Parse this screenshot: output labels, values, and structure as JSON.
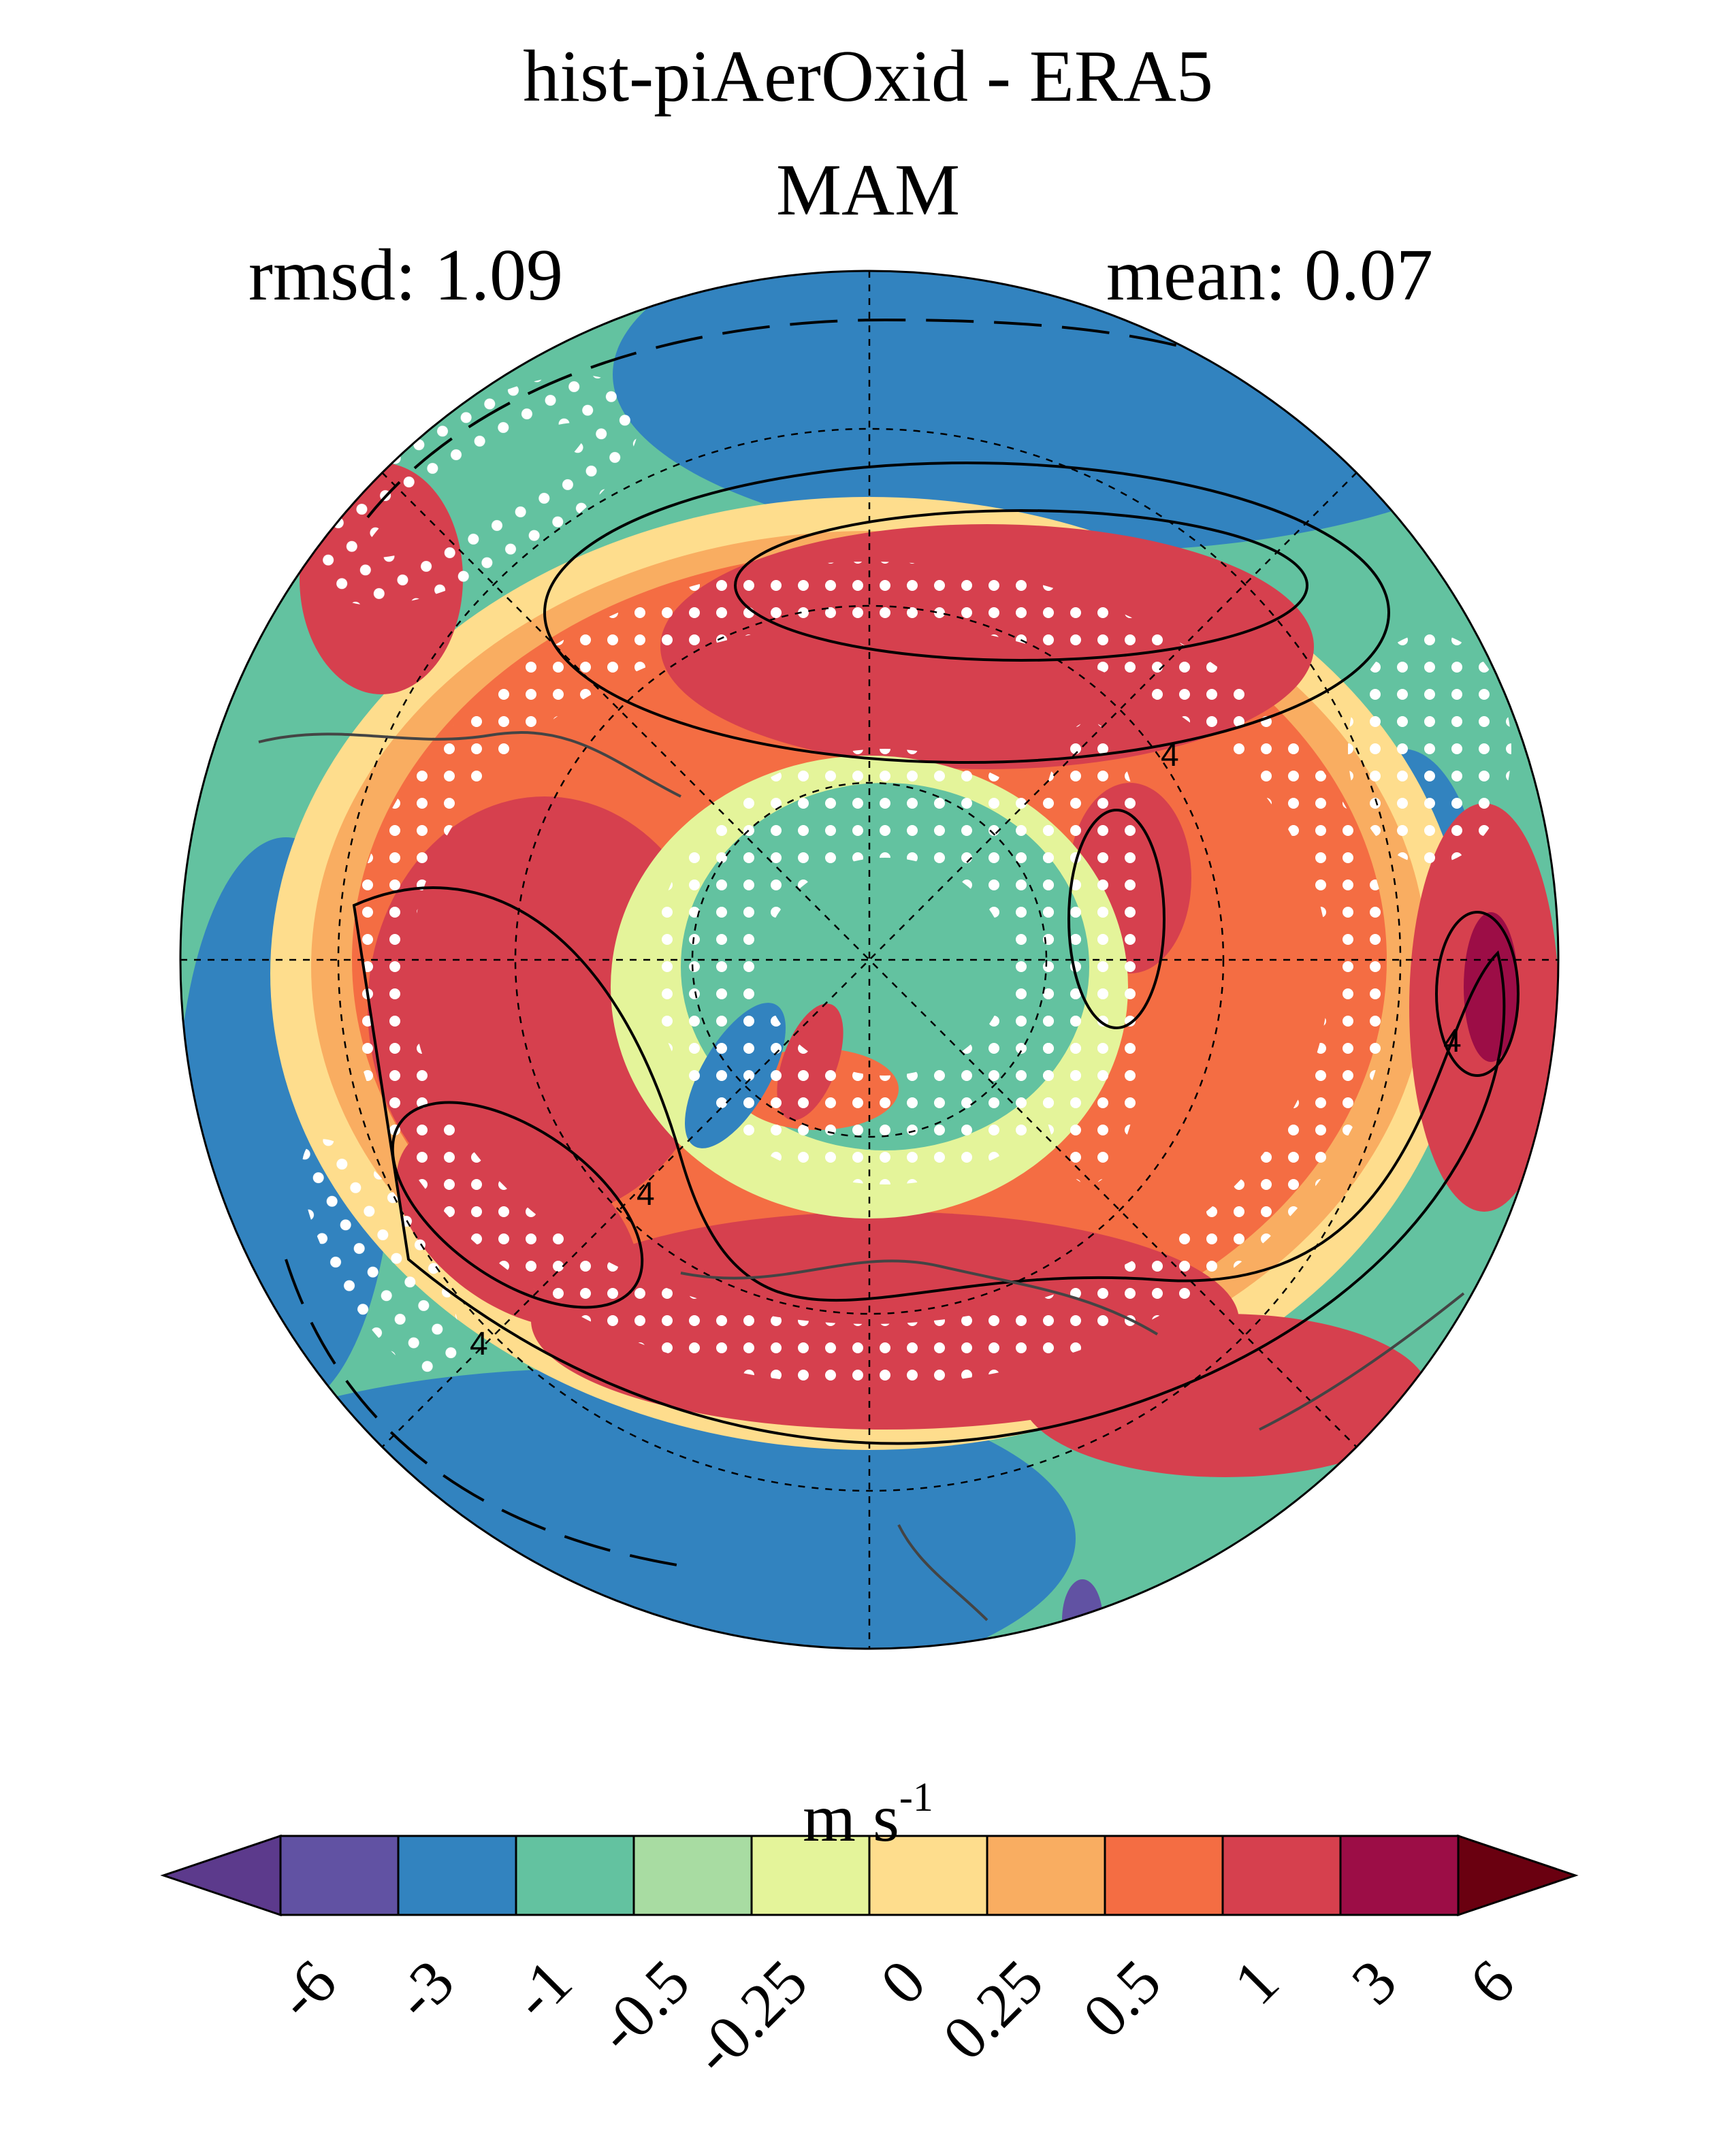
{
  "title": "hist-piAerOxid - ERA5",
  "subtitle": "MAM",
  "stats": {
    "rmsd": "rmsd: 1.09",
    "mean": "mean: 0.07"
  },
  "map": {
    "projection": "north polar stereographic",
    "contour_labels": [
      "4",
      "4",
      "4",
      "4"
    ],
    "stippling": "white dots mark significant differences"
  },
  "colorbar": {
    "units_base": "m s",
    "units_exp": "-1",
    "ticks": [
      "-6",
      "-3",
      "-1",
      "-0.5",
      "-0.25",
      "0",
      "0.25",
      "0.5",
      "1",
      "3",
      "6"
    ],
    "colors": [
      "#5c3a8c",
      "#6152a3",
      "#3283bf",
      "#63c2a0",
      "#a8dca2",
      "#e4f49a",
      "#fedd8d",
      "#f9ad61",
      "#f46d43",
      "#d6404e",
      "#9c0d46",
      "#6a0010"
    ]
  }
}
